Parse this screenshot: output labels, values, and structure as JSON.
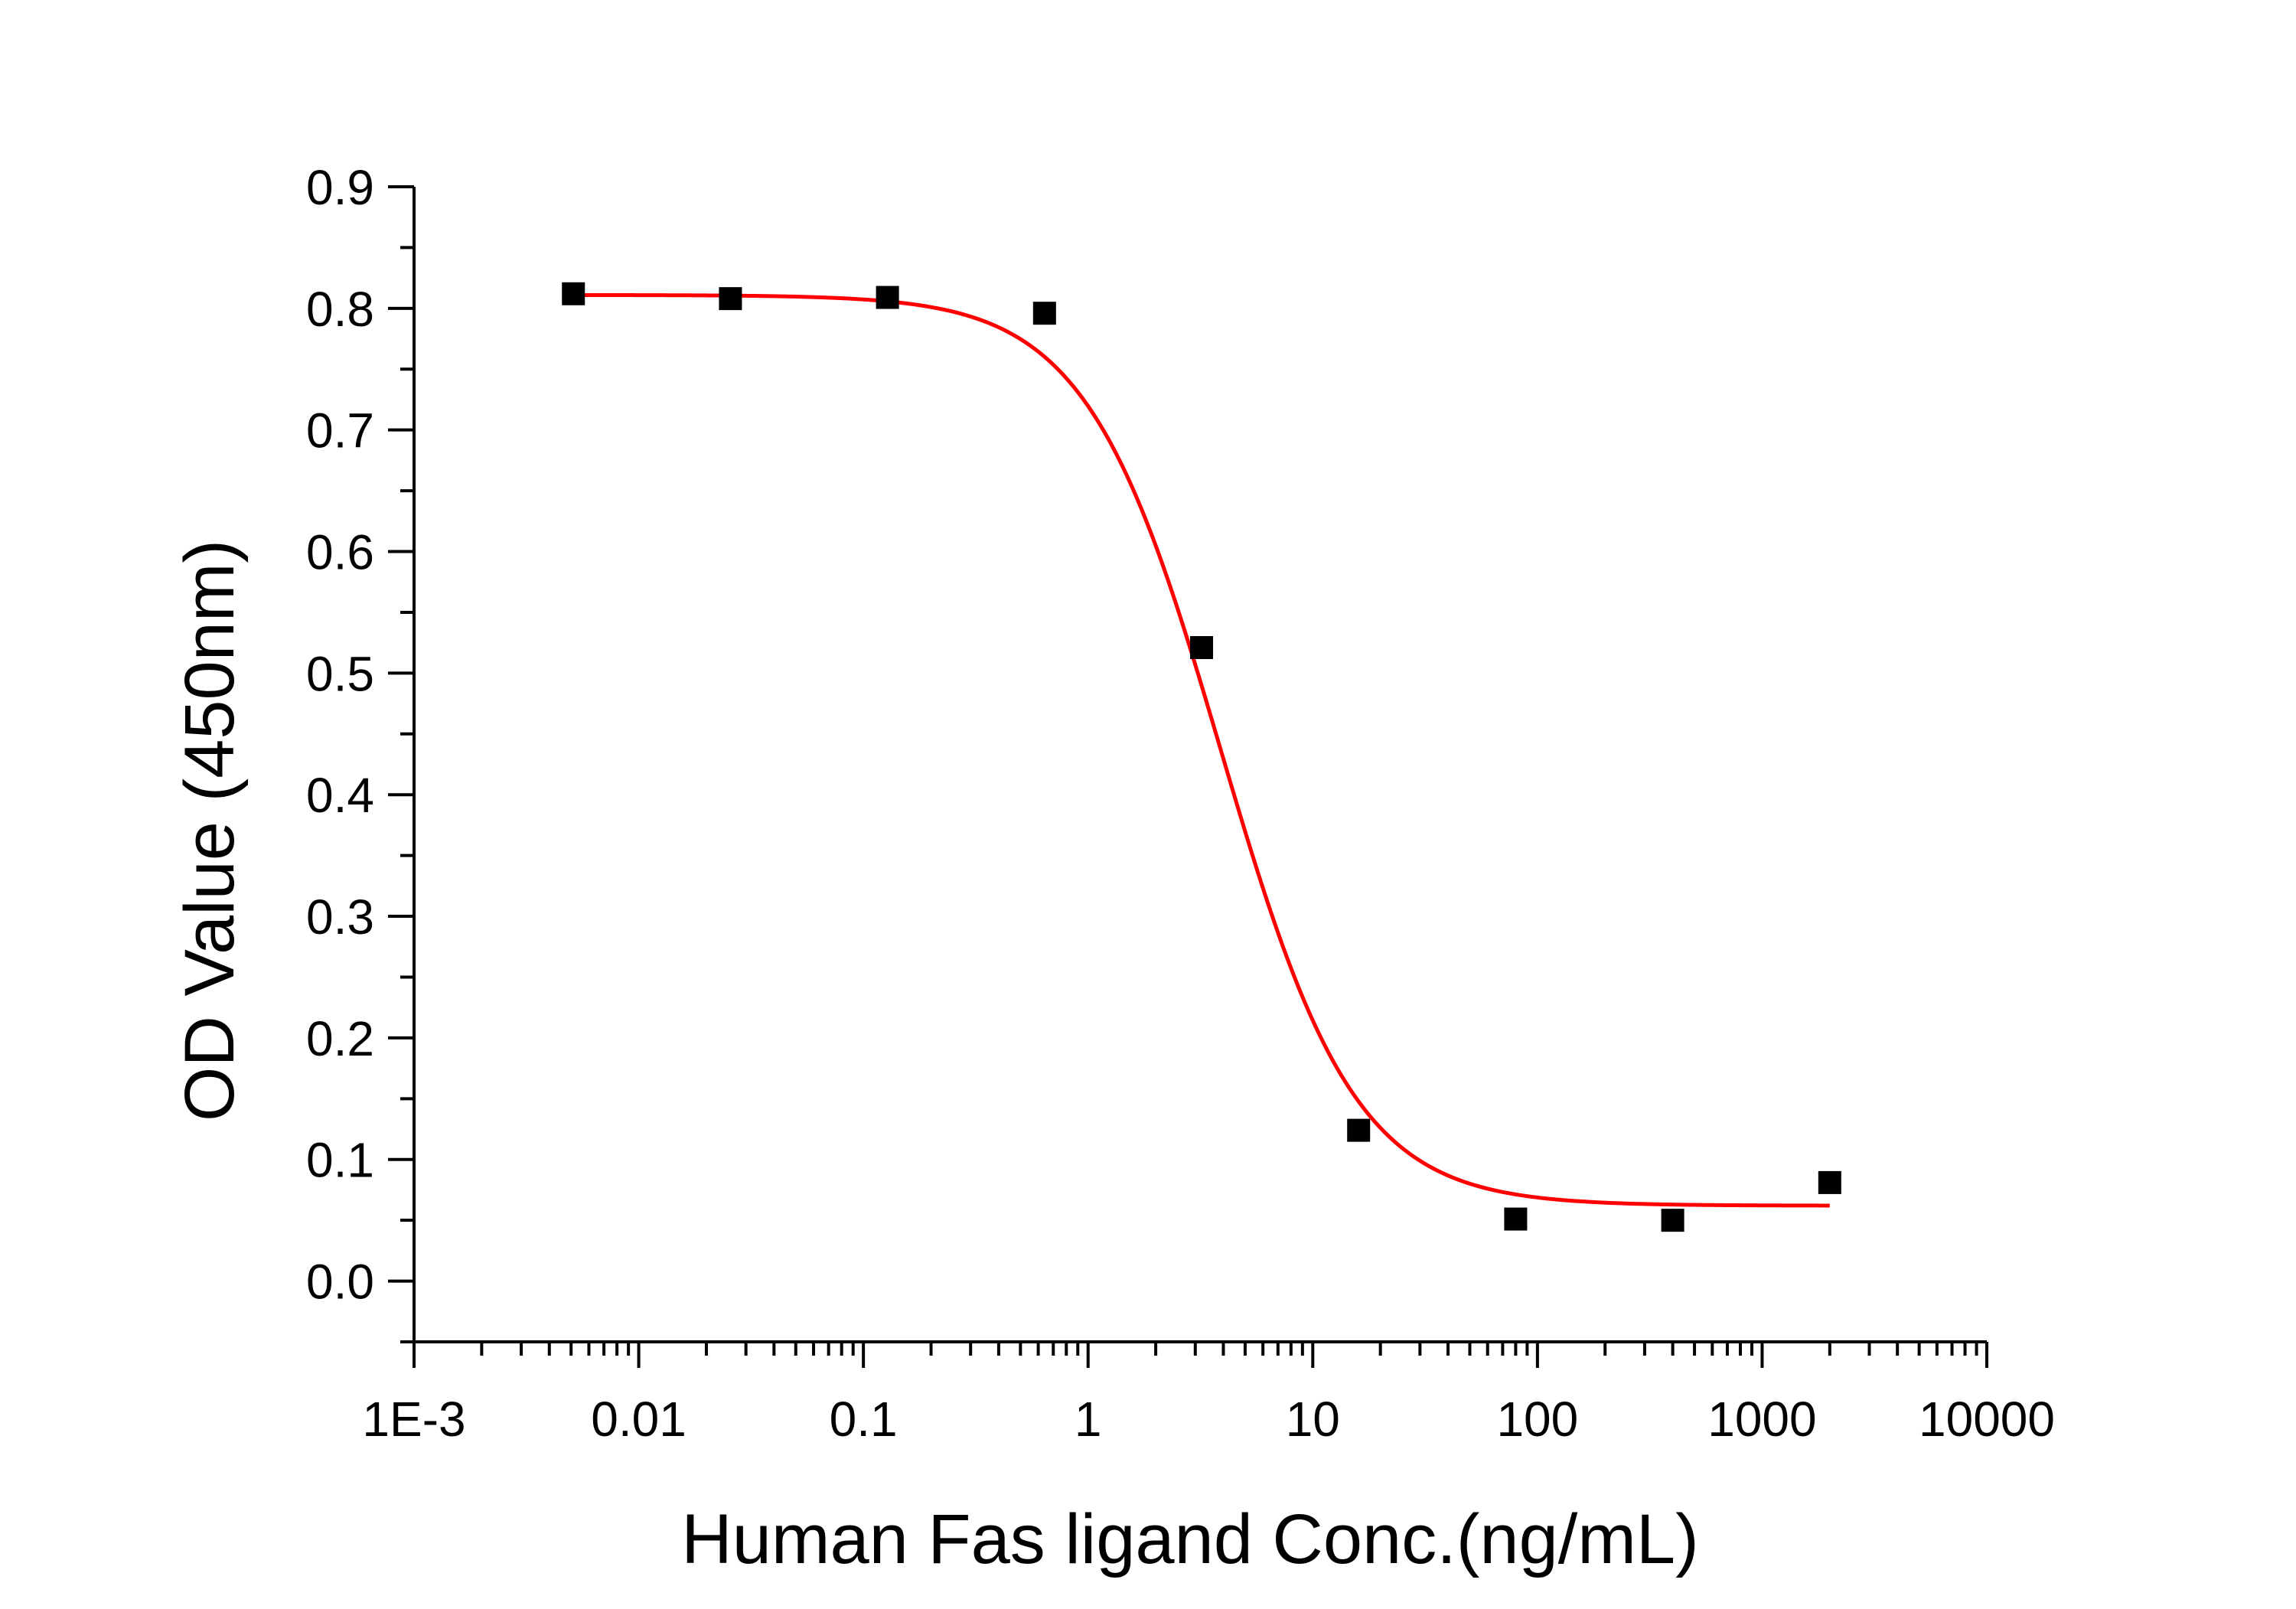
{
  "chart_data": {
    "type": "scatter",
    "title": "",
    "xlabel": "Human Fas ligand Conc.(ng/mL)",
    "ylabel": "OD Value (450nm)",
    "x_scale": "log",
    "xlim": [
      0.001,
      10000
    ],
    "ylim": [
      -0.05,
      0.9
    ],
    "x_tick_values": [
      0.001,
      0.01,
      0.1,
      1,
      10,
      100,
      1000,
      10000
    ],
    "x_tick_labels": [
      "1E-3",
      "0.01",
      "0.1",
      "1",
      "10",
      "100",
      "1000",
      "10000"
    ],
    "y_tick_values": [
      0.0,
      0.1,
      0.2,
      0.3,
      0.4,
      0.5,
      0.6,
      0.7,
      0.8,
      0.9
    ],
    "y_tick_labels": [
      "0.0",
      "0.1",
      "0.2",
      "0.3",
      "0.4",
      "0.5",
      "0.6",
      "0.7",
      "0.8",
      "0.9"
    ],
    "grid": false,
    "legend": "none",
    "series": [
      {
        "kind": "points",
        "marker": "square",
        "color": "#000000",
        "x": [
          0.00512,
          0.0256,
          0.128,
          0.64,
          3.2,
          16,
          80,
          400,
          2000
        ],
        "y": [
          0.812,
          0.808,
          0.809,
          0.796,
          0.521,
          0.124,
          0.051,
          0.05,
          0.081
        ]
      },
      {
        "kind": "fit",
        "color": "#ff0000",
        "model": "4PL",
        "top": 0.811,
        "bottom": 0.062,
        "ec50": 3.9,
        "hill": 1.45,
        "x_range": [
          0.00512,
          2000
        ]
      }
    ]
  }
}
